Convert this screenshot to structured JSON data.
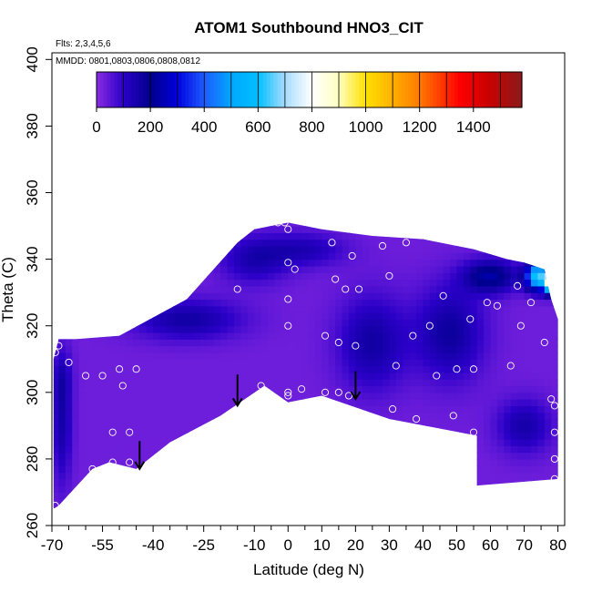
{
  "chart_data": {
    "type": "heatmap",
    "title": "ATOM1 Southbound HNO3_CIT",
    "subtitle_lines": [
      "Flts: 2,3,4,5,6",
      "MMDD: 0801,0803,0806,0808,0812"
    ],
    "xlabel": "Latitude (deg N)",
    "ylabel": "Theta (C)",
    "xlim": [
      -70,
      82
    ],
    "ylim": [
      260,
      402
    ],
    "x_ticks": [
      -70,
      -55,
      -40,
      -25,
      -10,
      0,
      10,
      20,
      30,
      40,
      50,
      60,
      70,
      80
    ],
    "x_minor_ticks": [
      -65,
      -60,
      -50,
      -45,
      -35,
      -30,
      -20,
      -15,
      -5,
      5,
      15,
      25,
      35,
      45,
      55,
      65,
      75
    ],
    "y_ticks": [
      260,
      280,
      300,
      320,
      340,
      360,
      380,
      400
    ],
    "colorbar": {
      "vmin": 0,
      "vmax": 1580,
      "ticks": [
        0,
        200,
        400,
        600,
        800,
        1000,
        1200,
        1400
      ],
      "stops": [
        {
          "v": 0,
          "color": "#8a2be2"
        },
        {
          "v": 100,
          "color": "#2b00c8"
        },
        {
          "v": 200,
          "color": "#00008b"
        },
        {
          "v": 300,
          "color": "#0000dd"
        },
        {
          "v": 400,
          "color": "#1e5cff"
        },
        {
          "v": 500,
          "color": "#00a8ff"
        },
        {
          "v": 600,
          "color": "#00bfff"
        },
        {
          "v": 700,
          "color": "#a8dcff"
        },
        {
          "v": 800,
          "color": "#ffffff"
        },
        {
          "v": 900,
          "color": "#ffffc0"
        },
        {
          "v": 1000,
          "color": "#ffe000"
        },
        {
          "v": 1100,
          "color": "#ffb000"
        },
        {
          "v": 1200,
          "color": "#ff7a00"
        },
        {
          "v": 1350,
          "color": "#ff0000"
        },
        {
          "v": 1450,
          "color": "#cc0000"
        },
        {
          "v": 1580,
          "color": "#8b1a1a"
        }
      ]
    },
    "data_boundary": [
      [
        -69.5,
        265
      ],
      [
        -69.5,
        310
      ],
      [
        -68,
        316
      ],
      [
        -63,
        316
      ],
      [
        -50,
        317
      ],
      [
        -30,
        328
      ],
      [
        -15,
        345
      ],
      [
        -10,
        349
      ],
      [
        0,
        351
      ],
      [
        10,
        349
      ],
      [
        25,
        347
      ],
      [
        40,
        346
      ],
      [
        55,
        343
      ],
      [
        65,
        340
      ],
      [
        70,
        339
      ],
      [
        76,
        337
      ],
      [
        78,
        328
      ],
      [
        80,
        322
      ],
      [
        80,
        274
      ],
      [
        56,
        272
      ],
      [
        56,
        287
      ],
      [
        30,
        292
      ],
      [
        10,
        299
      ],
      [
        0,
        297
      ],
      [
        -7,
        302
      ],
      [
        -20,
        293
      ],
      [
        -35,
        285
      ],
      [
        -45,
        277
      ],
      [
        -53,
        279
      ],
      [
        -58,
        277
      ],
      [
        -68,
        266
      ]
    ],
    "field_features": [
      {
        "x": -67,
        "y": 291,
        "sx": 3,
        "sy": 18,
        "amp": 120
      },
      {
        "x": -67,
        "y": 305,
        "sx": 3,
        "sy": 8,
        "amp": 60
      },
      {
        "x": -30,
        "y": 322,
        "sx": 16,
        "sy": 6,
        "amp": 130
      },
      {
        "x": -10,
        "y": 340,
        "sx": 10,
        "sy": 7,
        "amp": 110
      },
      {
        "x": 5,
        "y": 343,
        "sx": 12,
        "sy": 5,
        "amp": 100
      },
      {
        "x": 25,
        "y": 315,
        "sx": 10,
        "sy": 14,
        "amp": 130
      },
      {
        "x": 48,
        "y": 318,
        "sx": 10,
        "sy": 14,
        "amp": 140
      },
      {
        "x": 70,
        "y": 290,
        "sx": 8,
        "sy": 8,
        "amp": 120
      },
      {
        "x": 60,
        "y": 335,
        "sx": 8,
        "sy": 5,
        "amp": 200
      },
      {
        "x": 74,
        "y": 335,
        "sx": 3.5,
        "sy": 4,
        "amp": 600
      },
      {
        "x": 79,
        "y": 333,
        "sx": 2.5,
        "sy": 3,
        "amp": 1150
      }
    ],
    "observations": [
      {
        "x": -69,
        "y": 266
      },
      {
        "x": -69,
        "y": 312
      },
      {
        "x": -68,
        "y": 314
      },
      {
        "x": -65,
        "y": 309
      },
      {
        "x": -60,
        "y": 305
      },
      {
        "x": -58,
        "y": 277
      },
      {
        "x": -55,
        "y": 305
      },
      {
        "x": -52,
        "y": 288
      },
      {
        "x": -52,
        "y": 279
      },
      {
        "x": -50,
        "y": 307
      },
      {
        "x": -49,
        "y": 302
      },
      {
        "x": -47,
        "y": 288
      },
      {
        "x": -47,
        "y": 279
      },
      {
        "x": -45,
        "y": 307
      },
      {
        "x": -15,
        "y": 331
      },
      {
        "x": -8,
        "y": 302
      },
      {
        "x": -3,
        "y": 351
      },
      {
        "x": -1,
        "y": 351
      },
      {
        "x": 0,
        "y": 349
      },
      {
        "x": 0,
        "y": 339
      },
      {
        "x": 0,
        "y": 328
      },
      {
        "x": 0,
        "y": 320
      },
      {
        "x": 0,
        "y": 300
      },
      {
        "x": 0,
        "y": 299
      },
      {
        "x": 2,
        "y": 337
      },
      {
        "x": 4,
        "y": 301
      },
      {
        "x": 11,
        "y": 317
      },
      {
        "x": 11,
        "y": 300
      },
      {
        "x": 13,
        "y": 345
      },
      {
        "x": 14,
        "y": 334
      },
      {
        "x": 15,
        "y": 315
      },
      {
        "x": 15,
        "y": 300
      },
      {
        "x": 17,
        "y": 331
      },
      {
        "x": 18,
        "y": 299
      },
      {
        "x": 19,
        "y": 341
      },
      {
        "x": 20,
        "y": 314
      },
      {
        "x": 21,
        "y": 331
      },
      {
        "x": 28,
        "y": 344
      },
      {
        "x": 30,
        "y": 335
      },
      {
        "x": 31,
        "y": 295
      },
      {
        "x": 32,
        "y": 308
      },
      {
        "x": 35,
        "y": 345
      },
      {
        "x": 37,
        "y": 317
      },
      {
        "x": 38,
        "y": 292
      },
      {
        "x": 42,
        "y": 320
      },
      {
        "x": 44,
        "y": 305
      },
      {
        "x": 46,
        "y": 329
      },
      {
        "x": 49,
        "y": 293
      },
      {
        "x": 50,
        "y": 307
      },
      {
        "x": 54,
        "y": 322
      },
      {
        "x": 55,
        "y": 307
      },
      {
        "x": 55,
        "y": 288
      },
      {
        "x": 59,
        "y": 327
      },
      {
        "x": 62,
        "y": 326
      },
      {
        "x": 66,
        "y": 308
      },
      {
        "x": 68,
        "y": 332
      },
      {
        "x": 69,
        "y": 320
      },
      {
        "x": 72,
        "y": 327
      },
      {
        "x": 76,
        "y": 315
      },
      {
        "x": 78,
        "y": 298
      },
      {
        "x": 79,
        "y": 296
      },
      {
        "x": 79,
        "y": 288
      },
      {
        "x": 79,
        "y": 280
      },
      {
        "x": 79,
        "y": 274
      }
    ],
    "arrows": [
      {
        "x": -44,
        "y_top": 281,
        "y_tip": 277
      },
      {
        "x": -15,
        "y_top": 301,
        "y_tip": 296
      },
      {
        "x": 20,
        "y_top": 302,
        "y_tip": 298
      }
    ],
    "grid": false,
    "legend": "colorbar-top-inside"
  }
}
